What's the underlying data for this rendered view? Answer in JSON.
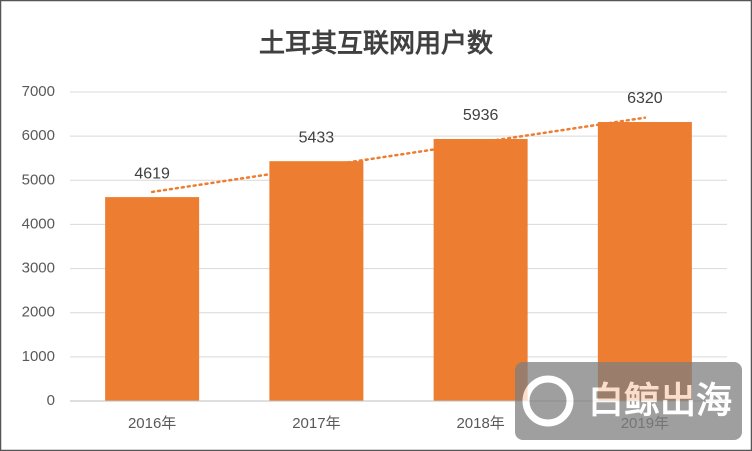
{
  "chart_data": {
    "type": "bar",
    "title": "土耳其互联网用户数",
    "categories": [
      "2016年",
      "2017年",
      "2018年",
      "2019年"
    ],
    "values": [
      4619,
      5433,
      5936,
      6320
    ],
    "color": "#ed7d31",
    "ylim": [
      0,
      7000
    ],
    "yticks": [
      0,
      1000,
      2000,
      3000,
      4000,
      5000,
      6000,
      7000
    ],
    "grid": true,
    "data_labels": true,
    "trendline": "linear",
    "trendline_color": "#ed7d31"
  },
  "watermark": "白鲸出海"
}
